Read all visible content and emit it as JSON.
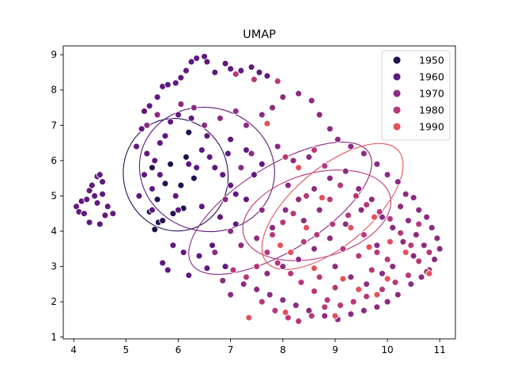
{
  "chart_data": {
    "type": "scatter",
    "title": "UMAP",
    "xlabel": "",
    "ylabel": "",
    "xlim": [
      3.8,
      11.3
    ],
    "ylim": [
      0.95,
      9.25
    ],
    "xticks": [
      4,
      5,
      6,
      7,
      8,
      9,
      10,
      11
    ],
    "yticks": [
      1,
      2,
      3,
      4,
      5,
      6,
      7,
      8,
      9
    ],
    "grid": false,
    "legend_position": "top-right",
    "series": [
      {
        "name": "1950",
        "color": "#221150",
        "points": [
          [
            5.55,
            4.05
          ],
          [
            5.62,
            4.25
          ],
          [
            5.45,
            4.55
          ],
          [
            5.7,
            4.3
          ],
          [
            5.6,
            4.9
          ],
          [
            5.75,
            5.35
          ],
          [
            5.85,
            5.9
          ],
          [
            6.05,
            5.3
          ],
          [
            6.2,
            6.8
          ],
          [
            6.15,
            6.1
          ],
          [
            5.9,
            4.5
          ],
          [
            6.3,
            5.5
          ],
          [
            5.5,
            5.8
          ],
          [
            6.1,
            4.65
          ]
        ]
      },
      {
        "name": "1960",
        "color": "#5f187f",
        "points": [
          [
            4.05,
            4.7
          ],
          [
            4.1,
            4.55
          ],
          [
            4.15,
            4.85
          ],
          [
            4.25,
            4.9
          ],
          [
            4.3,
            5.15
          ],
          [
            4.35,
            5.3
          ],
          [
            4.45,
            5.55
          ],
          [
            4.5,
            5.6
          ],
          [
            4.55,
            5.4
          ],
          [
            4.4,
            5.0
          ],
          [
            4.6,
            4.45
          ],
          [
            4.5,
            4.2
          ],
          [
            4.3,
            4.25
          ],
          [
            4.65,
            4.7
          ],
          [
            4.2,
            4.5
          ],
          [
            4.55,
            5.05
          ],
          [
            4.45,
            4.8
          ],
          [
            4.75,
            4.5
          ],
          [
            5.2,
            6.4
          ],
          [
            5.3,
            6.9
          ],
          [
            5.35,
            7.4
          ],
          [
            5.45,
            7.55
          ],
          [
            5.6,
            7.8
          ],
          [
            5.7,
            8.1
          ],
          [
            5.8,
            8.15
          ],
          [
            5.95,
            8.2
          ],
          [
            6.05,
            8.35
          ],
          [
            6.15,
            8.55
          ],
          [
            6.25,
            8.8
          ],
          [
            6.35,
            8.9
          ],
          [
            6.5,
            8.95
          ],
          [
            6.55,
            8.8
          ],
          [
            6.7,
            8.5
          ],
          [
            6.9,
            8.75
          ],
          [
            7.0,
            8.6
          ],
          [
            7.2,
            8.55
          ],
          [
            7.4,
            8.65
          ],
          [
            7.55,
            8.5
          ],
          [
            7.7,
            8.4
          ],
          [
            5.4,
            6.2
          ],
          [
            5.55,
            6.0
          ],
          [
            5.65,
            6.5
          ],
          [
            5.75,
            6.7
          ],
          [
            5.85,
            7.1
          ],
          [
            6.0,
            7.3
          ],
          [
            6.25,
            7.2
          ],
          [
            5.5,
            5.2
          ],
          [
            5.65,
            5.6
          ],
          [
            5.95,
            5.0
          ],
          [
            6.0,
            4.6
          ],
          [
            6.35,
            5.8
          ],
          [
            6.45,
            6.3
          ],
          [
            6.55,
            6.7
          ],
          [
            6.6,
            6.1
          ],
          [
            6.7,
            5.8
          ],
          [
            6.2,
            5.9
          ],
          [
            6.85,
            5.6
          ],
          [
            7.0,
            5.3
          ],
          [
            7.1,
            5.05
          ],
          [
            7.3,
            4.9
          ],
          [
            7.45,
            5.6
          ],
          [
            7.6,
            5.9
          ],
          [
            7.3,
            6.3
          ],
          [
            7.0,
            6.6
          ],
          [
            6.95,
            6.2
          ],
          [
            6.45,
            4.7
          ],
          [
            6.8,
            4.4
          ],
          [
            5.9,
            3.6
          ],
          [
            6.1,
            3.4
          ],
          [
            6.4,
            3.3
          ],
          [
            5.7,
            3.1
          ],
          [
            5.8,
            2.9
          ],
          [
            6.2,
            2.75
          ],
          [
            6.55,
            2.95
          ],
          [
            6.9,
            3.0
          ],
          [
            5.25,
            5.0
          ],
          [
            5.35,
            5.6
          ],
          [
            5.5,
            4.6
          ],
          [
            7.1,
            4.2
          ],
          [
            6.65,
            3.6
          ]
        ]
      },
      {
        "name": "1970",
        "color": "#8c2a81",
        "points": [
          [
            5.4,
            7.0
          ],
          [
            5.6,
            7.3
          ],
          [
            6.05,
            7.6
          ],
          [
            6.3,
            7.5
          ],
          [
            6.5,
            7.0
          ],
          [
            6.8,
            7.2
          ],
          [
            7.1,
            7.4
          ],
          [
            7.3,
            7.0
          ],
          [
            7.6,
            7.3
          ],
          [
            7.8,
            7.5
          ],
          [
            8.0,
            7.8
          ],
          [
            8.3,
            7.9
          ],
          [
            8.55,
            7.7
          ],
          [
            8.7,
            7.3
          ],
          [
            8.9,
            6.9
          ],
          [
            9.05,
            6.6
          ],
          [
            9.3,
            6.4
          ],
          [
            9.55,
            6.2
          ],
          [
            9.8,
            5.9
          ],
          [
            10.0,
            5.6
          ],
          [
            10.2,
            5.4
          ],
          [
            10.35,
            5.05
          ],
          [
            10.5,
            4.95
          ],
          [
            10.6,
            4.6
          ],
          [
            10.75,
            4.4
          ],
          [
            10.85,
            4.1
          ],
          [
            10.95,
            3.8
          ],
          [
            11.0,
            3.5
          ],
          [
            10.9,
            3.2
          ],
          [
            10.8,
            2.9
          ],
          [
            10.65,
            2.7
          ],
          [
            10.45,
            2.5
          ],
          [
            10.2,
            2.2
          ],
          [
            10.0,
            2.0
          ],
          [
            9.8,
            1.85
          ],
          [
            9.55,
            1.75
          ],
          [
            9.3,
            1.65
          ],
          [
            9.05,
            1.5
          ],
          [
            8.8,
            1.6
          ],
          [
            8.5,
            1.75
          ],
          [
            8.25,
            1.9
          ],
          [
            8.0,
            2.05
          ],
          [
            7.75,
            2.2
          ],
          [
            7.5,
            2.35
          ],
          [
            7.25,
            2.5
          ],
          [
            7.0,
            2.2
          ],
          [
            6.85,
            2.6
          ],
          [
            6.7,
            3.4
          ],
          [
            7.2,
            3.6
          ],
          [
            7.5,
            3.8
          ],
          [
            7.8,
            4.1
          ],
          [
            8.05,
            4.6
          ],
          [
            8.3,
            4.9
          ],
          [
            8.6,
            5.2
          ],
          [
            8.9,
            5.5
          ],
          [
            9.2,
            5.7
          ],
          [
            9.45,
            5.2
          ],
          [
            9.7,
            4.9
          ],
          [
            9.9,
            4.4
          ],
          [
            10.1,
            4.1
          ],
          [
            10.3,
            3.7
          ],
          [
            10.5,
            3.3
          ],
          [
            9.5,
            4.6
          ],
          [
            9.2,
            4.2
          ],
          [
            8.9,
            3.8
          ],
          [
            8.6,
            3.5
          ],
          [
            8.3,
            3.2
          ],
          [
            8.0,
            3.0
          ],
          [
            7.7,
            2.8
          ],
          [
            9.0,
            3.0
          ],
          [
            9.3,
            2.7
          ],
          [
            9.6,
            2.5
          ],
          [
            9.9,
            2.8
          ],
          [
            10.1,
            3.0
          ],
          [
            7.4,
            6.2
          ],
          [
            7.9,
            6.4
          ],
          [
            8.2,
            6.0
          ],
          [
            8.5,
            6.1
          ],
          [
            7.2,
            5.8
          ],
          [
            6.9,
            4.9
          ],
          [
            7.0,
            4.0
          ],
          [
            7.6,
            4.6
          ],
          [
            8.1,
            5.3
          ],
          [
            8.4,
            4.3
          ],
          [
            8.7,
            4.6
          ],
          [
            10.7,
            3.6
          ],
          [
            10.4,
            4.3
          ],
          [
            10.55,
            3.9
          ],
          [
            10.25,
            4.7
          ],
          [
            9.8,
            3.6
          ]
        ]
      },
      {
        "name": "1980",
        "color": "#b73779",
        "points": [
          [
            7.1,
            8.45
          ],
          [
            7.45,
            8.3
          ],
          [
            7.9,
            8.25
          ],
          [
            8.05,
            6.1
          ],
          [
            8.6,
            6.3
          ],
          [
            8.8,
            5.85
          ],
          [
            9.1,
            5.3
          ],
          [
            9.4,
            5.0
          ],
          [
            9.6,
            4.75
          ],
          [
            9.85,
            4.55
          ],
          [
            10.05,
            4.35
          ],
          [
            10.25,
            3.95
          ],
          [
            10.45,
            3.6
          ],
          [
            10.6,
            3.15
          ],
          [
            10.75,
            2.85
          ],
          [
            10.4,
            2.75
          ],
          [
            10.15,
            2.55
          ],
          [
            9.9,
            2.35
          ],
          [
            9.6,
            2.15
          ],
          [
            9.35,
            2.0
          ],
          [
            9.1,
            1.9
          ],
          [
            8.85,
            2.05
          ],
          [
            8.6,
            2.3
          ],
          [
            8.35,
            2.55
          ],
          [
            8.15,
            2.8
          ],
          [
            7.9,
            3.1
          ],
          [
            7.7,
            3.4
          ],
          [
            7.5,
            3.0
          ],
          [
            7.3,
            2.7
          ],
          [
            7.05,
            2.9
          ],
          [
            7.6,
            2.0
          ],
          [
            7.85,
            1.75
          ],
          [
            8.1,
            1.55
          ],
          [
            8.3,
            1.45
          ],
          [
            8.55,
            1.6
          ],
          [
            8.8,
            1.85
          ],
          [
            8.4,
            3.7
          ],
          [
            8.65,
            3.9
          ],
          [
            8.95,
            4.2
          ],
          [
            9.25,
            4.45
          ],
          [
            9.55,
            3.9
          ],
          [
            9.8,
            3.4
          ],
          [
            10.0,
            3.2
          ],
          [
            8.2,
            4.5
          ],
          [
            8.45,
            5.0
          ],
          [
            8.9,
            4.9
          ],
          [
            9.15,
            3.5
          ],
          [
            9.45,
            3.3
          ],
          [
            7.8,
            3.9
          ],
          [
            8.0,
            4.25
          ],
          [
            10.8,
            3.4
          ],
          [
            10.6,
            4.2
          ],
          [
            8.7,
            2.7
          ],
          [
            9.0,
            2.4
          ],
          [
            9.7,
            2.9
          ]
        ]
      },
      {
        "name": "1990",
        "color": "#e4515b",
        "points": [
          [
            7.7,
            7.05
          ],
          [
            8.3,
            5.8
          ],
          [
            8.75,
            4.95
          ],
          [
            9.3,
            4.1
          ],
          [
            9.75,
            4.4
          ],
          [
            10.05,
            3.7
          ],
          [
            10.35,
            3.4
          ],
          [
            10.8,
            2.8
          ],
          [
            9.8,
            2.2
          ],
          [
            9.45,
            2.35
          ],
          [
            9.15,
            2.65
          ],
          [
            8.6,
            2.95
          ],
          [
            8.15,
            3.4
          ],
          [
            7.95,
            3.6
          ],
          [
            8.45,
            4.1
          ],
          [
            9.65,
            3.55
          ],
          [
            10.0,
            2.65
          ],
          [
            7.35,
            1.55
          ],
          [
            8.05,
            1.7
          ],
          [
            9.0,
            1.6
          ]
        ]
      }
    ],
    "ellipses": [
      {
        "series": "1950",
        "cx": 5.95,
        "cy": 5.6,
        "rx": 1.0,
        "ry": 1.6,
        "angle": -12
      },
      {
        "series": "1960",
        "cx": 6.55,
        "cy": 5.75,
        "rx": 1.3,
        "ry": 1.75,
        "angle": 15
      },
      {
        "series": "1970",
        "cx": 7.95,
        "cy": 4.65,
        "rx": 2.0,
        "ry": 1.2,
        "angle": -32
      },
      {
        "series": "1980",
        "cx": 8.65,
        "cy": 4.45,
        "rx": 1.45,
        "ry": 1.2,
        "angle": -15
      },
      {
        "series": "1990",
        "cx": 8.95,
        "cy": 4.7,
        "rx": 1.65,
        "ry": 1.1,
        "angle": -40
      }
    ]
  }
}
